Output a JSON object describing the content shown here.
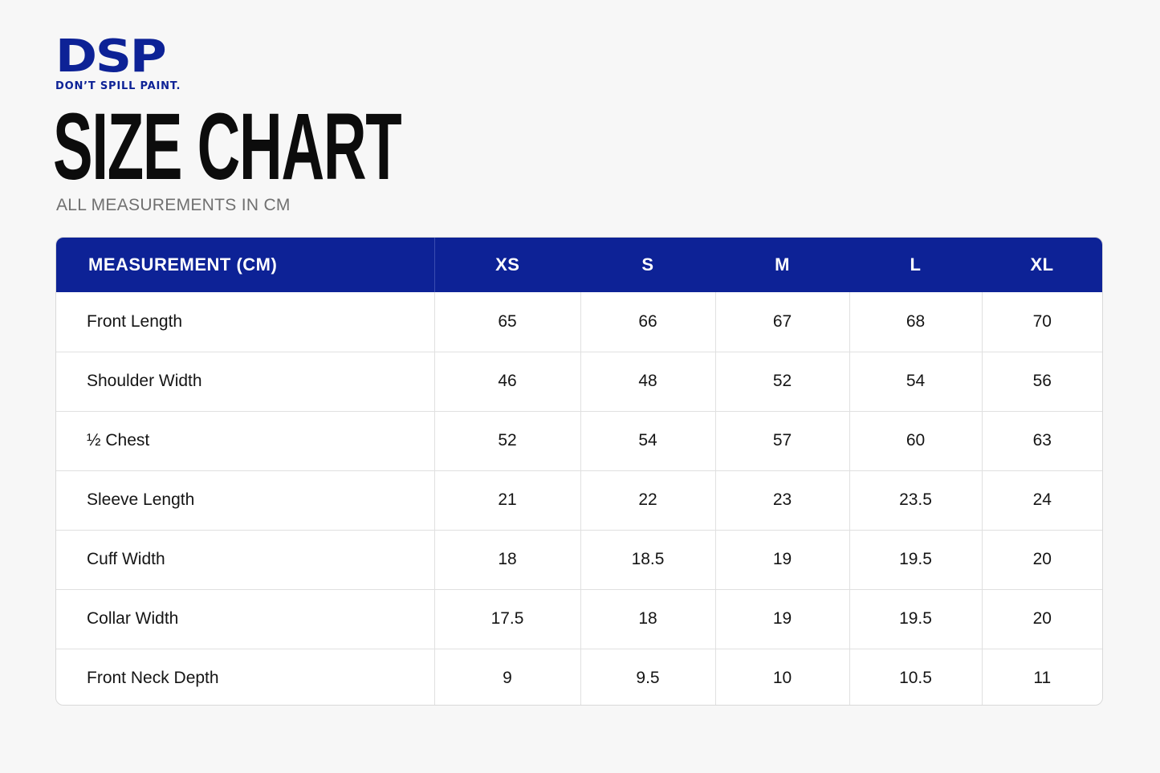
{
  "brand": {
    "logo_text": "DSP",
    "tagline": "DON’T SPILL PAINT."
  },
  "title": "SIZE CHART",
  "subtitle": "ALL MEASUREMENTS IN CM",
  "colors": {
    "brand_blue": "#0d2296",
    "background": "#f7f7f7",
    "subtitle_gray": "#707070"
  },
  "table": {
    "headers": [
      "MEASUREMENT (CM)",
      "XS",
      "S",
      "M",
      "L",
      "XL"
    ],
    "rows": [
      [
        "Front Length",
        "65",
        "66",
        "67",
        "68",
        "70"
      ],
      [
        "Shoulder Width",
        "46",
        "48",
        "52",
        "54",
        "56"
      ],
      [
        "½ Chest",
        "52",
        "54",
        "57",
        "60",
        "63"
      ],
      [
        "Sleeve Length",
        "21",
        "22",
        "23",
        "23.5",
        "24"
      ],
      [
        "Cuff Width",
        "18",
        "18.5",
        "19",
        "19.5",
        "20"
      ],
      [
        "Collar Width",
        "17.5",
        "18",
        "19",
        "19.5",
        "20"
      ],
      [
        "Front Neck Depth",
        "9",
        "9.5",
        "10",
        "10.5",
        "11"
      ]
    ]
  }
}
